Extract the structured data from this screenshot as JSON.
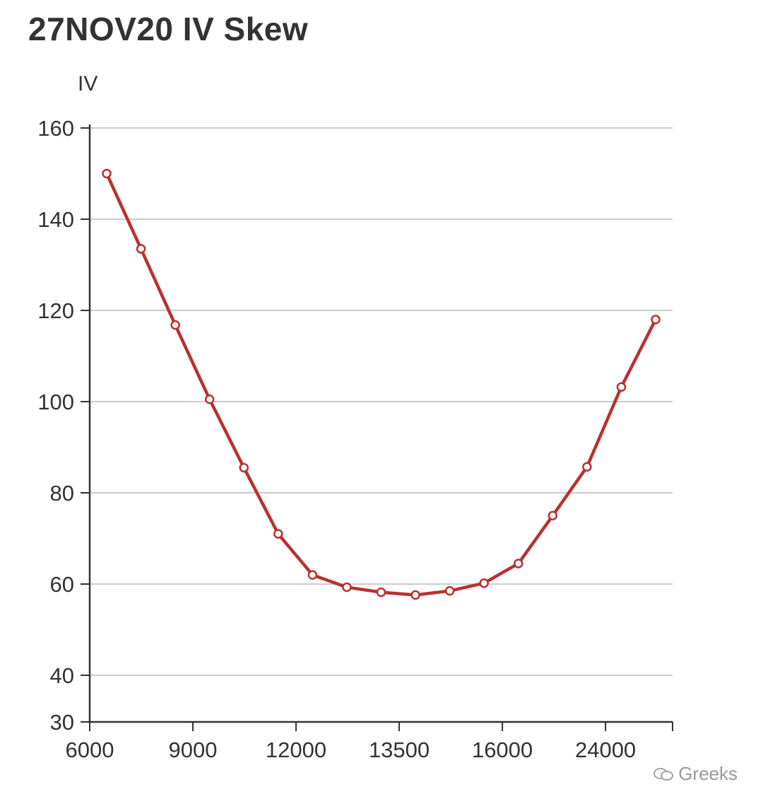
{
  "title": "27NOV20 IV Skew",
  "watermark": "Greeks",
  "colors": {
    "line": "#b8312f",
    "grid": "#cccccc",
    "axis": "#333333",
    "marker_fill": "#ffffff"
  },
  "chart_data": {
    "type": "line",
    "title": "27NOV20 IV Skew",
    "ylabel": "IV",
    "xlabel": "",
    "y_ticks": [
      30,
      40,
      60,
      80,
      100,
      120,
      140,
      160
    ],
    "x_tick_labels": [
      "6000",
      "9000",
      "12000",
      "13500",
      "16000",
      "24000"
    ],
    "ylim": [
      30,
      160
    ],
    "grid": true,
    "series": [
      {
        "values": [
          150,
          133.5,
          116.8,
          100.5,
          85.5,
          71,
          62,
          59.3,
          58.2,
          57.6,
          58.5,
          60.2,
          64.5,
          75,
          85.7,
          103.2,
          118
        ]
      }
    ]
  }
}
